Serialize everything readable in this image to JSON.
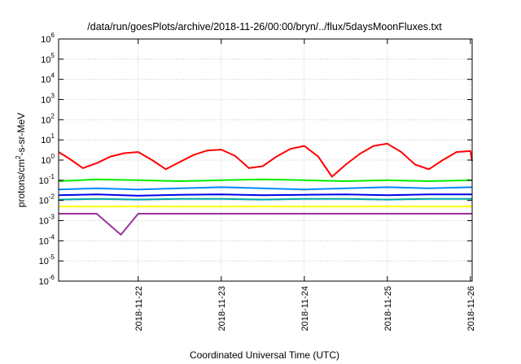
{
  "chart_data": {
    "type": "line",
    "title": "/data/run/goesPlots/archive/2018-11-26/00:00/bryn/../flux/5daysMoonFluxes.txt",
    "xlabel": "Coordinated Universal Time (UTC)",
    "ylabel": "protons/cm²-s-sr-MeV",
    "ylabel_parts": {
      "base": "protons/cm",
      "sup": "2",
      "rest": "-s-sr-MeV"
    },
    "y_scale": "log",
    "ylim": [
      1e-06,
      1000000.0
    ],
    "y_ticks": [
      {
        "base": "10",
        "exp": "-6",
        "value": 1e-06
      },
      {
        "base": "10",
        "exp": "-5",
        "value": 1e-05
      },
      {
        "base": "10",
        "exp": "-4",
        "value": 0.0001
      },
      {
        "base": "10",
        "exp": "-3",
        "value": 0.001
      },
      {
        "base": "10",
        "exp": "-2",
        "value": 0.01
      },
      {
        "base": "10",
        "exp": "-1",
        "value": 0.1
      },
      {
        "base": "10",
        "exp": "0",
        "value": 1
      },
      {
        "base": "10",
        "exp": "1",
        "value": 10
      },
      {
        "base": "10",
        "exp": "2",
        "value": 100
      },
      {
        "base": "10",
        "exp": "3",
        "value": 1000
      },
      {
        "base": "10",
        "exp": "4",
        "value": 10000
      },
      {
        "base": "10",
        "exp": "5",
        "value": 100000
      },
      {
        "base": "10",
        "exp": "6",
        "value": 1000000
      }
    ],
    "xlim": [
      "2018-11-21T01:00",
      "2018-11-26T00:30"
    ],
    "x_ticks": [
      "2018-11-22",
      "2018-11-23",
      "2018-11-24",
      "2018-11-25",
      "2018-11-26"
    ],
    "grid": true,
    "legend": "none",
    "series": [
      {
        "color": "#ff0000",
        "x": [
          "2018-11-21T01:00",
          "2018-11-21T04:00",
          "2018-11-21T08:00",
          "2018-11-21T12:00",
          "2018-11-21T16:00",
          "2018-11-21T20:00",
          "2018-11-22T00:00",
          "2018-11-22T04:00",
          "2018-11-22T08:00",
          "2018-11-22T12:00",
          "2018-11-22T16:00",
          "2018-11-22T20:00",
          "2018-11-23T00:00",
          "2018-11-23T04:00",
          "2018-11-23T08:00",
          "2018-11-23T12:00",
          "2018-11-23T16:00",
          "2018-11-23T20:00",
          "2018-11-24T00:00",
          "2018-11-24T04:00",
          "2018-11-24T08:00",
          "2018-11-24T12:00",
          "2018-11-24T16:00",
          "2018-11-24T20:00",
          "2018-11-25T00:00",
          "2018-11-25T04:00",
          "2018-11-25T08:00",
          "2018-11-25T12:00",
          "2018-11-25T16:00",
          "2018-11-25T20:00",
          "2018-11-26T00:00",
          "2018-11-26T00:30"
        ],
        "values": [
          2.5,
          1.2,
          0.4,
          0.7,
          1.5,
          2.2,
          2.5,
          1.0,
          0.35,
          0.8,
          1.8,
          3.0,
          3.3,
          1.6,
          0.4,
          0.5,
          1.5,
          3.6,
          5.0,
          1.5,
          0.15,
          0.6,
          2.0,
          5.0,
          6.5,
          2.5,
          0.6,
          0.35,
          1.0,
          2.5,
          2.8,
          0.9
        ]
      },
      {
        "color": "#00ee00",
        "x": [
          "2018-11-21T01:00",
          "2018-11-21T12:00",
          "2018-11-22T00:00",
          "2018-11-22T12:00",
          "2018-11-23T00:00",
          "2018-11-23T12:00",
          "2018-11-24T00:00",
          "2018-11-24T12:00",
          "2018-11-25T00:00",
          "2018-11-25T12:00",
          "2018-11-26T00:30"
        ],
        "values": [
          0.09,
          0.11,
          0.1,
          0.09,
          0.1,
          0.11,
          0.1,
          0.09,
          0.1,
          0.09,
          0.1
        ]
      },
      {
        "color": "#0088ff",
        "x": [
          "2018-11-21T01:00",
          "2018-11-21T12:00",
          "2018-11-22T00:00",
          "2018-11-22T12:00",
          "2018-11-23T00:00",
          "2018-11-23T12:00",
          "2018-11-24T00:00",
          "2018-11-24T12:00",
          "2018-11-25T00:00",
          "2018-11-25T12:00",
          "2018-11-26T00:30"
        ],
        "values": [
          0.035,
          0.04,
          0.035,
          0.04,
          0.045,
          0.04,
          0.035,
          0.04,
          0.045,
          0.04,
          0.045
        ]
      },
      {
        "color": "#0000ee",
        "x": [
          "2018-11-21T01:00",
          "2018-11-21T12:00",
          "2018-11-22T00:00",
          "2018-11-22T12:00",
          "2018-11-23T00:00",
          "2018-11-23T12:00",
          "2018-11-24T00:00",
          "2018-11-24T12:00",
          "2018-11-25T00:00",
          "2018-11-25T12:00",
          "2018-11-26T00:30"
        ],
        "values": [
          0.018,
          0.02,
          0.017,
          0.019,
          0.02,
          0.018,
          0.019,
          0.02,
          0.018,
          0.02,
          0.02
        ]
      },
      {
        "color": "#00aaaa",
        "x": [
          "2018-11-21T01:00",
          "2018-11-21T12:00",
          "2018-11-22T00:00",
          "2018-11-22T12:00",
          "2018-11-23T00:00",
          "2018-11-23T12:00",
          "2018-11-24T00:00",
          "2018-11-24T12:00",
          "2018-11-25T00:00",
          "2018-11-25T12:00",
          "2018-11-26T00:30"
        ],
        "values": [
          0.011,
          0.012,
          0.011,
          0.012,
          0.012,
          0.011,
          0.012,
          0.012,
          0.011,
          0.012,
          0.012
        ]
      },
      {
        "color": "#ffff00",
        "x": [
          "2018-11-21T01:00",
          "2018-11-21T12:00",
          "2018-11-22T00:00",
          "2018-11-22T12:00",
          "2018-11-23T00:00",
          "2018-11-23T12:00",
          "2018-11-24T00:00",
          "2018-11-24T12:00",
          "2018-11-25T00:00",
          "2018-11-25T12:00",
          "2018-11-26T00:30"
        ],
        "values": [
          0.005,
          0.005,
          0.005,
          0.005,
          0.005,
          0.005,
          0.005,
          0.005,
          0.005,
          0.005,
          0.005
        ]
      },
      {
        "color": "#993399",
        "x": [
          "2018-11-21T01:00",
          "2018-11-21T12:00",
          "2018-11-21T19:00",
          "2018-11-22T00:00",
          "2018-11-22T12:00",
          "2018-11-23T00:00",
          "2018-11-23T12:00",
          "2018-11-24T00:00",
          "2018-11-24T12:00",
          "2018-11-25T00:00",
          "2018-11-25T12:00",
          "2018-11-26T00:30"
        ],
        "values": [
          0.0022,
          0.0022,
          0.0002,
          0.0022,
          0.0022,
          0.0022,
          0.0022,
          0.0022,
          0.0022,
          0.0022,
          0.0022,
          0.0022
        ]
      }
    ]
  }
}
